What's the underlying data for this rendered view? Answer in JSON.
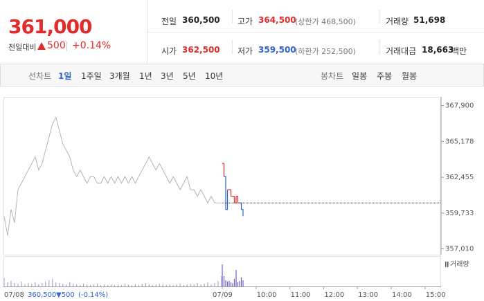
{
  "header": {
    "price": "361,000",
    "change_label": "전일대비",
    "change": "500",
    "change_pct": "+0.14%",
    "stats": [
      {
        "label": "전일",
        "value": "360,500"
      },
      {
        "label": "고가",
        "value": "364,500",
        "note": "(상한가 468,500)"
      },
      {
        "label": "거래량",
        "value": "51,698"
      },
      {
        "label": "시가",
        "value": "362,500"
      },
      {
        "label": "저가",
        "value": "359,500",
        "note": "(하한가 252,500)"
      },
      {
        "label": "거래대금",
        "value": "18,663",
        "unit": "백만"
      }
    ]
  },
  "tabs": {
    "line_label": "선차트",
    "periods": [
      "1일",
      "1주일",
      "3개월",
      "1년",
      "3년",
      "5년",
      "10년"
    ],
    "candle_label": "봉차트",
    "candles": [
      "일봉",
      "주봉",
      "월봉"
    ]
  },
  "chart_data": {
    "type": "line",
    "ylim": [
      356570,
      368560
    ],
    "yticks": [
      {
        "value": 357010,
        "label": "357,010"
      },
      {
        "value": 359733,
        "label": "359,733"
      },
      {
        "value": 362455,
        "label": "362,455"
      },
      {
        "value": 365178,
        "label": "365,178"
      },
      {
        "value": 367900,
        "label": "367,900"
      }
    ],
    "reference": 360500,
    "x_labels": [
      "07/08",
      "07/09",
      "10:00",
      "11:00",
      "12:00",
      "13:00",
      "14:00",
      "15:00"
    ],
    "series": [
      {
        "color": "#b4b4b4",
        "values": [
          359500,
          358000,
          360000,
          359000,
          361500,
          362000,
          362500,
          363000,
          363500,
          364000,
          363000,
          363500,
          364500,
          365500,
          366500,
          367000,
          366000,
          365000,
          364500,
          364000,
          363000,
          362500,
          363000,
          362500,
          362000,
          362500,
          362500,
          362000,
          362000,
          362500,
          362000,
          362500,
          362000,
          362500,
          362000,
          362500,
          362000,
          362500,
          362000,
          362500,
          363000,
          363500,
          364000,
          363500,
          363000,
          363500,
          363000,
          362500,
          362000,
          362500,
          362000,
          361500,
          362000,
          362500,
          361500,
          361500,
          361000,
          361500,
          361000,
          360500,
          361000,
          360500,
          360500,
          360500
        ]
      },
      {
        "color": "#e22b2b",
        "down_color": "#2e63cf",
        "values": [
          363500,
          362500,
          360000,
          361500,
          361500,
          361000,
          361000,
          360500,
          361000,
          360500,
          360500,
          360000,
          359500
        ]
      }
    ],
    "volume": {
      "label": "거래량",
      "ylim": [
        0,
        4000
      ],
      "series": [
        {
          "color": "#a9a9c9",
          "values": [
            1200,
            600,
            800,
            500,
            400,
            700,
            300,
            500,
            400,
            600,
            300,
            500,
            700,
            900,
            1100,
            600,
            500,
            400,
            300,
            600,
            400,
            300,
            200,
            400,
            300,
            200,
            300,
            400,
            200,
            300,
            200,
            300,
            200,
            300,
            200,
            400,
            300,
            200,
            300,
            200,
            400,
            500,
            300,
            200,
            300,
            400,
            300,
            200,
            300,
            200,
            300,
            400,
            200,
            300,
            400,
            300,
            500,
            300,
            400,
            600,
            300,
            500,
            800,
            1500
          ]
        },
        {
          "color": "#6d5bd0",
          "values": [
            3200,
            1500,
            900,
            700,
            800,
            600,
            500,
            1100,
            2400,
            600,
            800,
            1300,
            900
          ]
        }
      ]
    }
  },
  "footer": {
    "date": "07/08",
    "close": "360,500",
    "change": "▼500",
    "change_pct": "(-0.14%)"
  }
}
